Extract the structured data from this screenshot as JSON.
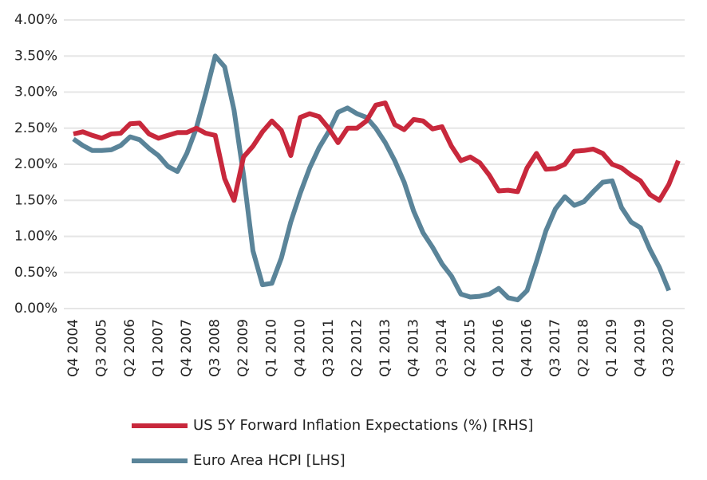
{
  "chart_data": {
    "type": "line",
    "categories": [
      "Q4 2004",
      null,
      null,
      "Q3 2005",
      null,
      null,
      "Q2 2006",
      null,
      null,
      "Q1 2007",
      null,
      null,
      "Q4 2007",
      null,
      null,
      "Q3 2008",
      null,
      null,
      "Q2 2009",
      null,
      null,
      "Q1 2010",
      null,
      null,
      "Q4 2010",
      null,
      null,
      "Q3 2011",
      null,
      null,
      "Q2 2012",
      null,
      null,
      "Q1 2013",
      null,
      null,
      "Q4 2013",
      null,
      null,
      "Q3 2014",
      null,
      null,
      "Q2 2015",
      null,
      null,
      "Q1 2016",
      null,
      null,
      "Q4 2016",
      null,
      null,
      "Q3 2017",
      null,
      null,
      "Q2 2018",
      null,
      null,
      "Q1 2019",
      null,
      null,
      "Q4 2019",
      null,
      null,
      "Q3 2020",
      null
    ],
    "series": [
      {
        "name": "US 5Y Forward Inflation Expectations (%) [RHS]",
        "color": "#c8283c",
        "values": [
          2.42,
          2.45,
          2.4,
          2.36,
          2.42,
          2.43,
          2.56,
          2.57,
          2.42,
          2.36,
          2.4,
          2.44,
          2.44,
          2.5,
          2.43,
          2.4,
          1.8,
          1.5,
          2.1,
          2.25,
          2.45,
          2.6,
          2.47,
          2.12,
          2.65,
          2.7,
          2.66,
          2.5,
          2.3,
          2.5,
          2.5,
          2.6,
          2.82,
          2.85,
          2.55,
          2.48,
          2.62,
          2.6,
          2.49,
          2.52,
          2.25,
          2.05,
          2.1,
          2.02,
          1.85,
          1.63,
          1.64,
          1.62,
          1.95,
          2.15,
          1.93,
          1.94,
          2.0,
          2.18,
          2.19,
          2.21,
          2.15,
          2.0,
          1.95,
          1.85,
          1.77,
          1.58,
          1.5,
          1.72,
          2.05
        ]
      },
      {
        "name": "Euro Area HCPI [LHS]",
        "color": "#5a8499",
        "values": [
          2.35,
          2.26,
          2.19,
          2.19,
          2.2,
          2.26,
          2.38,
          2.34,
          2.22,
          2.12,
          1.97,
          1.9,
          2.15,
          2.5,
          2.98,
          3.5,
          3.35,
          2.75,
          1.85,
          0.8,
          0.33,
          0.35,
          0.7,
          1.2,
          1.6,
          1.95,
          2.23,
          2.45,
          2.72,
          2.78,
          2.7,
          2.65,
          2.5,
          2.3,
          2.05,
          1.75,
          1.35,
          1.05,
          0.85,
          0.62,
          0.45,
          0.2,
          0.16,
          0.17,
          0.2,
          0.28,
          0.15,
          0.12,
          0.25,
          0.65,
          1.08,
          1.38,
          1.55,
          1.43,
          1.48,
          1.62,
          1.75,
          1.77,
          1.4,
          1.2,
          1.12,
          0.82,
          0.57,
          0.25,
          null
        ]
      }
    ],
    "ylim": [
      0,
      4
    ],
    "yticks": [
      {
        "value": 0,
        "label": "0.00%"
      },
      {
        "value": 0.5,
        "label": "0.50%"
      },
      {
        "value": 1,
        "label": "1.00%"
      },
      {
        "value": 1.5,
        "label": "1.50%"
      },
      {
        "value": 2,
        "label": "2.00%"
      },
      {
        "value": 2.5,
        "label": "2.50%"
      },
      {
        "value": 3,
        "label": "3.00%"
      },
      {
        "value": 3.5,
        "label": "3.50%"
      },
      {
        "value": 4,
        "label": "4.00%"
      }
    ],
    "grid": true,
    "legend": "bottom"
  }
}
